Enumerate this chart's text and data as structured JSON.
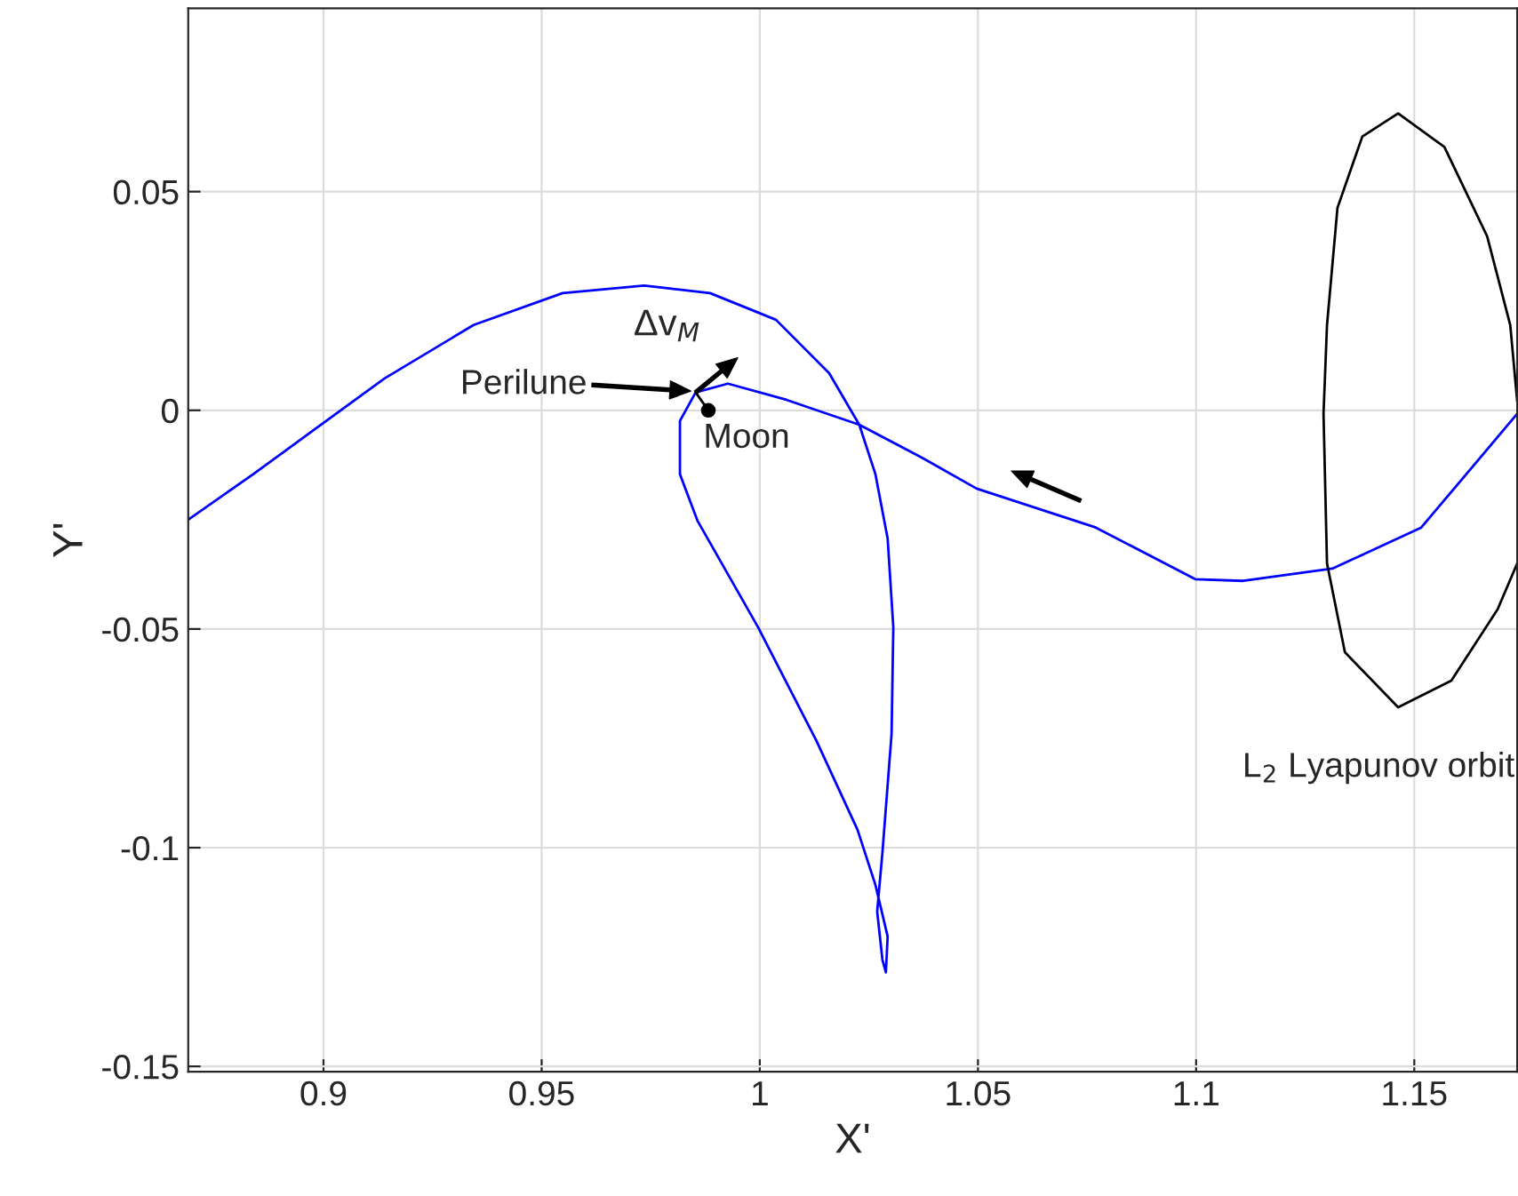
{
  "chart_data": {
    "type": "line",
    "xlabel": "X'",
    "ylabel": "Y'",
    "xlim": [
      0.869,
      1.1736
    ],
    "ylim": [
      -0.1512,
      0.0919
    ],
    "xticks": [
      0.9,
      0.95,
      1,
      1.05,
      1.1,
      1.15
    ],
    "yticks": [
      -0.15,
      -0.1,
      -0.05,
      0,
      0.05
    ],
    "grid": true,
    "series": [
      {
        "color": "#0000ff",
        "x": [
          1.1736,
          1.1516,
          1.1312,
          1.1108,
          1.0998,
          1.077,
          1.0497,
          1.0375,
          1.0228,
          1.0061,
          0.9927,
          0.9853,
          0.9817,
          0.9817,
          0.9857,
          0.9996,
          1.013,
          1.0224,
          1.0265,
          1.0293,
          1.0289,
          1.0281,
          1.0269,
          1.0281,
          1.0302,
          1.0306,
          1.0293,
          1.0265,
          1.0228,
          1.0159,
          1.0037,
          0.9886,
          0.9735,
          0.9548,
          0.9344,
          0.914,
          0.8989,
          0.8839,
          0.869
        ],
        "values": [
          -0.0008,
          -0.0268,
          -0.0362,
          -0.039,
          -0.0386,
          -0.0268,
          -0.0179,
          -0.011,
          -0.0033,
          0.0024,
          0.0061,
          0.0041,
          -0.0024,
          -0.0146,
          -0.0252,
          -0.0496,
          -0.0756,
          -0.0959,
          -0.1085,
          -0.1203,
          -0.1285,
          -0.1256,
          -0.1146,
          -0.1012,
          -0.074,
          -0.0496,
          -0.0293,
          -0.0146,
          -0.0033,
          0.0085,
          0.0207,
          0.0268,
          0.0285,
          0.0268,
          0.0195,
          0.0073,
          -0.0037,
          -0.0146,
          -0.025
        ]
      },
      {
        "color": "#000000",
        "x": [
          1.1736,
          1.172,
          1.1667,
          1.1569,
          1.1463,
          1.1381,
          1.1324,
          1.13,
          1.1292,
          1.13,
          1.1341,
          1.1463,
          1.1585,
          1.1691,
          1.1736
        ],
        "values": [
          0.002,
          0.0195,
          0.0398,
          0.0602,
          0.0679,
          0.0626,
          0.0463,
          0.0195,
          -0.0008,
          -0.035,
          -0.0553,
          -0.0679,
          -0.0618,
          -0.0455,
          -0.035
        ]
      },
      {
        "type": "line",
        "color": "#000000",
        "x": [
          0.9882,
          0.9853
        ],
        "values": [
          0,
          0.0041
        ]
      },
      {
        "type": "scatter",
        "color": "#000000",
        "x": [
          0.9882
        ],
        "values": [
          0
        ]
      }
    ],
    "annotations": [
      "Perilune",
      "Δv$_{M}$",
      "Moon",
      "L$_{2}$ Lyapunov orbit"
    ]
  }
}
